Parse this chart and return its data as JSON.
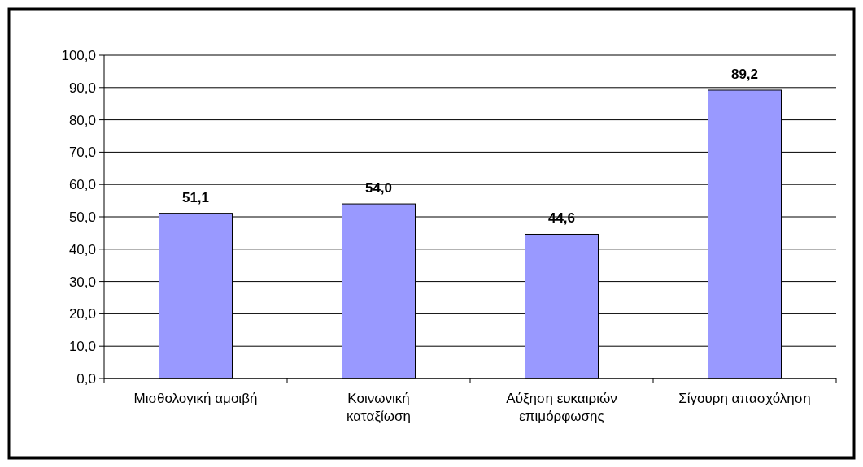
{
  "chart_data": {
    "type": "bar",
    "categories": [
      "Μισθολογική αμοιβή",
      "Κοινωνική καταξίωση",
      "Αύξηση ευκαιριών επιμόρφωσης",
      "Σίγουρη απασχόληση"
    ],
    "values": [
      51.1,
      54.0,
      44.6,
      89.2
    ],
    "color": "#9999ff",
    "value_labels": [
      "51,1",
      "54,0",
      "44,6",
      "89,2"
    ],
    "ylim": [
      0,
      100
    ],
    "yticks": [
      {
        "value": 0,
        "label": "0,0"
      },
      {
        "value": 10,
        "label": "10,0"
      },
      {
        "value": 20,
        "label": "20,0"
      },
      {
        "value": 30,
        "label": "30,0"
      },
      {
        "value": 40,
        "label": "40,0"
      },
      {
        "value": 50,
        "label": "50,0"
      },
      {
        "value": 60,
        "label": "60,0"
      },
      {
        "value": 70,
        "label": "70,0"
      },
      {
        "value": 80,
        "label": "80,0"
      },
      {
        "value": 90,
        "label": "90,0"
      },
      {
        "value": 100,
        "label": "100,0"
      }
    ],
    "grid": "y"
  }
}
